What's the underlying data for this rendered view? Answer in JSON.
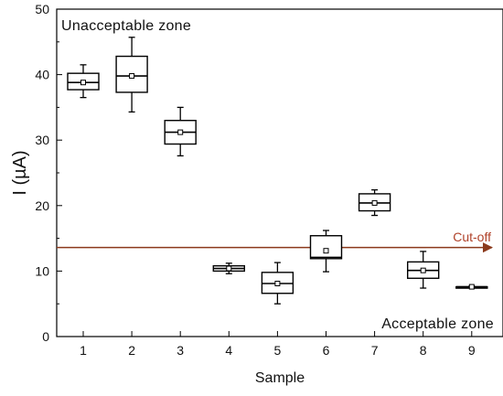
{
  "chart_data": {
    "type": "box",
    "xlabel": "Sample",
    "ylabel": "I (µA)",
    "ylim": [
      0,
      50
    ],
    "yticks": [
      0,
      10,
      20,
      30,
      40,
      50
    ],
    "categories": [
      "1",
      "2",
      "3",
      "4",
      "5",
      "6",
      "7",
      "8",
      "9"
    ],
    "boxes": [
      {
        "sample": "1",
        "whisker_low": 36.5,
        "q1": 37.7,
        "median": 38.8,
        "mean": 38.8,
        "q3": 40.2,
        "whisker_high": 41.5
      },
      {
        "sample": "2",
        "whisker_low": 34.3,
        "q1": 37.3,
        "median": 39.8,
        "mean": 39.8,
        "q3": 42.8,
        "whisker_high": 45.7
      },
      {
        "sample": "3",
        "whisker_low": 27.6,
        "q1": 29.4,
        "median": 31.2,
        "mean": 31.2,
        "q3": 33.0,
        "whisker_high": 35.0
      },
      {
        "sample": "4",
        "whisker_low": 9.6,
        "q1": 10.0,
        "median": 10.4,
        "mean": 10.4,
        "q3": 10.8,
        "whisker_high": 11.2
      },
      {
        "sample": "5",
        "whisker_low": 5.0,
        "q1": 6.6,
        "median": 8.1,
        "mean": 8.1,
        "q3": 9.8,
        "whisker_high": 11.3
      },
      {
        "sample": "6",
        "whisker_low": 9.9,
        "q1": 11.9,
        "median": 12.1,
        "mean": 13.1,
        "q3": 15.4,
        "whisker_high": 16.2
      },
      {
        "sample": "7",
        "whisker_low": 18.5,
        "q1": 19.2,
        "median": 20.4,
        "mean": 20.4,
        "q3": 21.8,
        "whisker_high": 22.4
      },
      {
        "sample": "8",
        "whisker_low": 7.4,
        "q1": 8.9,
        "median": 10.1,
        "mean": 10.1,
        "q3": 11.4,
        "whisker_high": 13.0
      },
      {
        "sample": "9",
        "whisker_low": 7.5,
        "q1": 7.5,
        "median": 7.6,
        "mean": 7.6,
        "q3": 7.6,
        "whisker_high": 7.7
      }
    ],
    "cutoff": {
      "value": 13.6,
      "label": "Cut-off",
      "color": "#8b3a1c",
      "label_color": "#b0422a"
    },
    "annotations": {
      "top": "Unacceptable zone",
      "bottom": "Acceptable zone"
    },
    "grid": false,
    "colors": {
      "axis": "#000000",
      "box": "#000000"
    }
  }
}
